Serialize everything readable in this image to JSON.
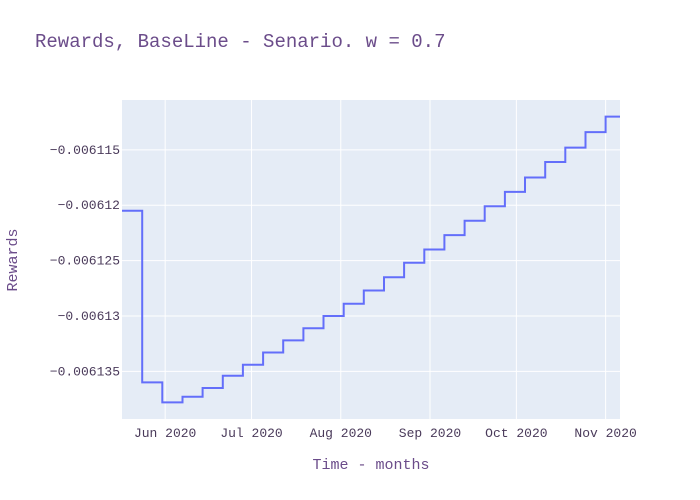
{
  "chart_data": {
    "type": "line",
    "line_shape": "step",
    "title": "Rewards, BaseLine - Senario. w = 0.7",
    "xlabel": "Time - months",
    "ylabel": "Rewards",
    "x_ticks": [
      {
        "label": "Jun 2020",
        "date": "2020-06-01"
      },
      {
        "label": "Jul 2020",
        "date": "2020-07-01"
      },
      {
        "label": "Aug 2020",
        "date": "2020-08-01"
      },
      {
        "label": "Sep 2020",
        "date": "2020-09-01"
      },
      {
        "label": "Oct 2020",
        "date": "2020-10-01"
      },
      {
        "label": "Nov 2020",
        "date": "2020-11-01"
      }
    ],
    "y_ticks": [
      {
        "label": "−0.006115",
        "value": -0.006115
      },
      {
        "label": "−0.00612",
        "value": -0.00612
      },
      {
        "label": "−0.006125",
        "value": -0.006125
      },
      {
        "label": "−0.00613",
        "value": -0.00613
      },
      {
        "label": "−0.006135",
        "value": -0.006135
      }
    ],
    "xlim": [
      "2020-05-17",
      "2020-11-06"
    ],
    "ylim": [
      -0.0061393,
      -0.0061105
    ],
    "grid": true,
    "colors": {
      "line": "#636efa",
      "plot_bg": "#e5ecf6",
      "grid": "#ffffff"
    },
    "series": [
      {
        "x": [
          "2020-05-17",
          "2020-05-24",
          "2020-05-31",
          "2020-06-07",
          "2020-06-14",
          "2020-06-21",
          "2020-06-28",
          "2020-07-05",
          "2020-07-12",
          "2020-07-19",
          "2020-07-26",
          "2020-08-02",
          "2020-08-09",
          "2020-08-16",
          "2020-08-23",
          "2020-08-30",
          "2020-09-06",
          "2020-09-13",
          "2020-09-20",
          "2020-09-27",
          "2020-10-04",
          "2020-10-11",
          "2020-10-18",
          "2020-10-25",
          "2020-11-01",
          "2020-11-06"
        ],
        "y": [
          -0.0061205,
          -0.006136,
          -0.0061378,
          -0.0061373,
          -0.0061365,
          -0.0061354,
          -0.0061344,
          -0.0061333,
          -0.0061322,
          -0.0061311,
          -0.00613,
          -0.0061289,
          -0.0061277,
          -0.0061265,
          -0.0061252,
          -0.006124,
          -0.0061227,
          -0.0061214,
          -0.0061201,
          -0.0061188,
          -0.0061175,
          -0.0061161,
          -0.0061148,
          -0.0061134,
          -0.006112,
          -0.006112
        ]
      }
    ]
  }
}
